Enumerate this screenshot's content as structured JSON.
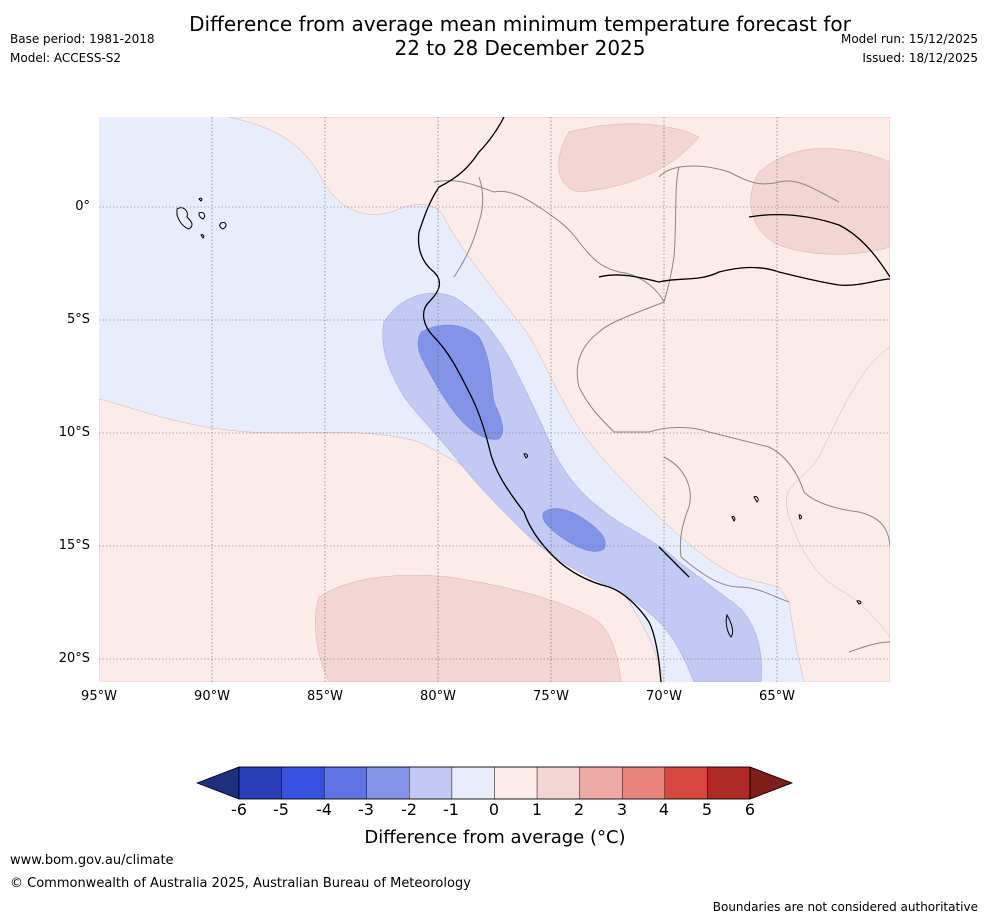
{
  "header": {
    "title_line1": "Difference from average mean minimum temperature forecast for",
    "title_line2": "22 to 28 December 2025",
    "base_period": "Base period: 1981-2018",
    "model": "Model: ACCESS-S2",
    "model_run": "Model run: 15/12/2025",
    "issued": "Issued: 18/12/2025"
  },
  "map": {
    "lat_labels": [
      "0°",
      "5°S",
      "10°S",
      "15°S",
      "20°S"
    ],
    "lon_labels": [
      "95°W",
      "90°W",
      "85°W",
      "80°W",
      "75°W",
      "70°W",
      "65°W"
    ],
    "colors": {
      "ocean_neg": "#e8ecfb",
      "land_pos": "#fbebe9",
      "pos1": "#f3d6d3",
      "neg1": "#c2caf3",
      "neg2": "#8293e8"
    }
  },
  "colorbar": {
    "ticks": [
      "-6",
      "-5",
      "-4",
      "-3",
      "-2",
      "-1",
      "0",
      "1",
      "2",
      "3",
      "4",
      "5",
      "6"
    ],
    "colors": [
      "#1d2f7e",
      "#283fb6",
      "#3651e0",
      "#5f73e4",
      "#8293e8",
      "#c2caf3",
      "#e8ecfb",
      "#fbebe9",
      "#f3d6d3",
      "#edaaa6",
      "#e8857d",
      "#d9483e",
      "#ac2a23",
      "#7d1e1a"
    ],
    "label": "Difference from average (°C)"
  },
  "footer": {
    "url": "www.bom.gov.au/climate",
    "copyright": "© Commonwealth of Australia 2025, Australian Bureau of Meteorology",
    "disclaimer": "Boundaries are not considered authoritative"
  }
}
